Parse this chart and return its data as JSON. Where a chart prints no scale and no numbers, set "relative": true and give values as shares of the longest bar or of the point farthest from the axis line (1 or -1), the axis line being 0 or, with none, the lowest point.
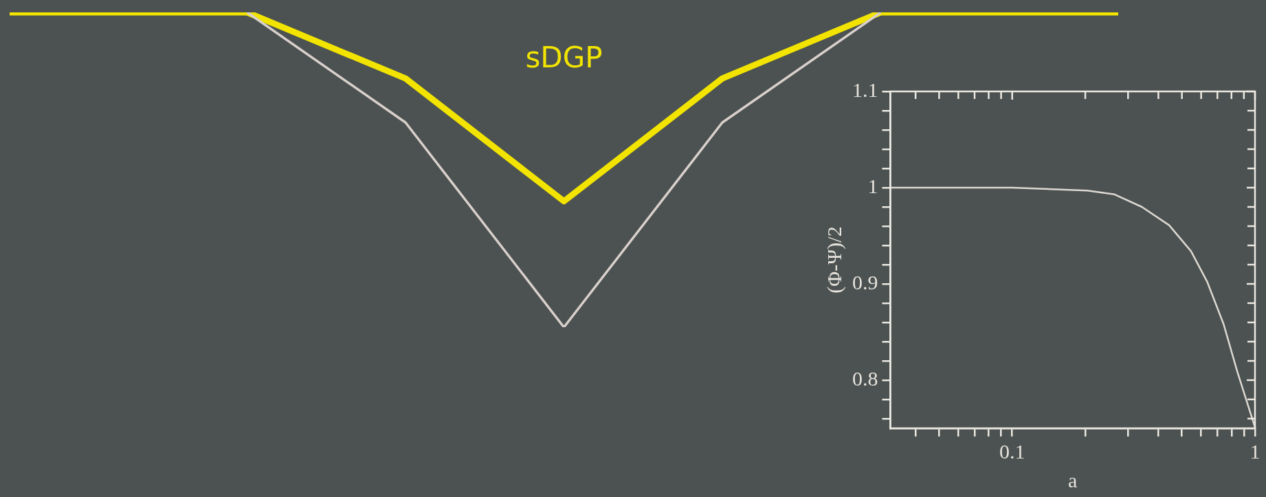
{
  "chart_data": [
    {
      "type": "line",
      "relative": true,
      "categories": [
        null,
        null,
        null,
        null,
        null,
        null,
        null,
        null,
        null,
        null,
        null,
        null,
        null,
        null,
        null
      ],
      "series": [
        {
          "name": "sDGP",
          "color": "#f2e400",
          "values": [
            1,
            null,
            null,
            1,
            null,
            0.79,
            null,
            0.4,
            null,
            0.79,
            null,
            1,
            null,
            null,
            1
          ]
        },
        {
          "color": "#d9d0cc",
          "values": [
            null,
            null,
            null,
            1,
            null,
            0.65,
            null,
            0,
            null,
            0.65,
            null,
            1,
            null,
            null,
            null
          ]
        }
      ],
      "marker": "none"
    },
    {
      "type": "line",
      "xlabel": "a",
      "ylabel": "(Φ-Ψ)/2",
      "log": "x",
      "xlim": [
        0.0315,
        1
      ],
      "ylim": [
        0.75,
        1.1
      ],
      "xticks": [
        {
          "value": 0.04,
          "label": null
        },
        {
          "value": 0.05,
          "label": null
        },
        {
          "value": 0.06,
          "label": null
        },
        {
          "value": 0.07,
          "label": null
        },
        {
          "value": 0.08,
          "label": null
        },
        {
          "value": 0.09,
          "label": null
        },
        0.1,
        {
          "value": 0.2,
          "label": null
        },
        {
          "value": 0.3,
          "label": null
        },
        {
          "value": 0.4,
          "label": null
        },
        {
          "value": 0.5,
          "label": null
        },
        {
          "value": 0.6,
          "label": null
        },
        {
          "value": 0.7,
          "label": null
        },
        {
          "value": 0.8,
          "label": null
        },
        {
          "value": 0.9,
          "label": null
        },
        1
      ],
      "yticks": [
        {
          "value": 0.76,
          "label": null
        },
        {
          "value": 0.78,
          "label": null
        },
        0.8,
        {
          "value": 0.82,
          "label": null
        },
        {
          "value": 0.84,
          "label": null
        },
        {
          "value": 0.86,
          "label": null
        },
        {
          "value": 0.88,
          "label": null
        },
        0.9,
        {
          "value": 0.92,
          "label": null
        },
        {
          "value": 0.94,
          "label": null
        },
        {
          "value": 0.96,
          "label": null
        },
        {
          "value": 0.98,
          "label": null
        },
        1,
        {
          "value": 1.02,
          "label": null
        },
        {
          "value": 1.04,
          "label": null
        },
        {
          "value": 1.06,
          "label": null
        },
        {
          "value": 1.08,
          "label": null
        },
        1.1
      ],
      "series": [
        {
          "color": "#ddd8d2",
          "x": [
            0.0315,
            0.1,
            0.204,
            0.264,
            0.342,
            0.443,
            0.545,
            0.636,
            0.743,
            0.845,
            1
          ],
          "values": [
            1,
            1,
            0.997,
            0.993,
            0.98,
            0.961,
            0.934,
            0.902,
            0.858,
            0.809,
            0.751
          ]
        }
      ],
      "marker": "none",
      "grid": false
    }
  ]
}
